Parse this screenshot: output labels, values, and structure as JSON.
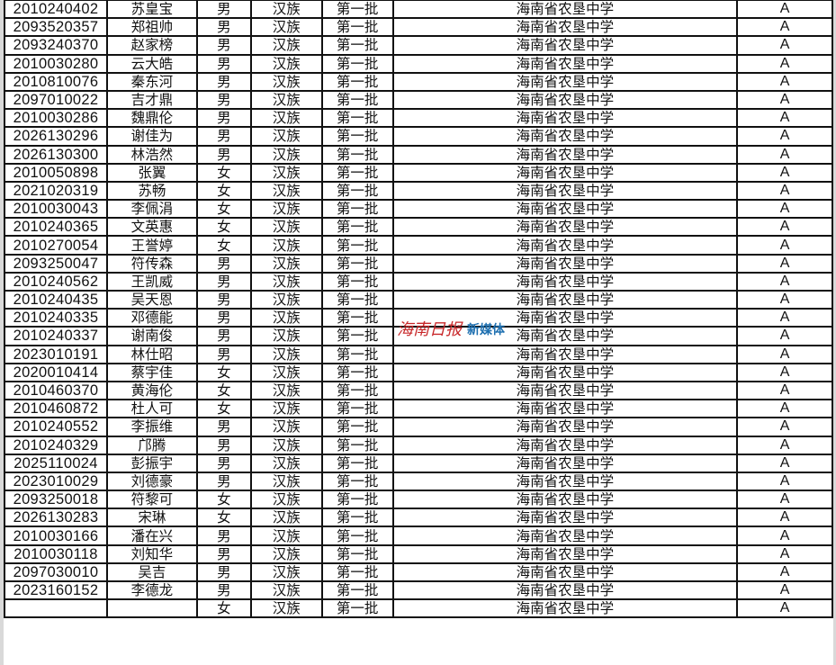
{
  "rows": [
    [
      "2010240402",
      "苏皇宝",
      "男",
      "汉族",
      "第一批",
      "海南省农垦中学",
      "A"
    ],
    [
      "2093520357",
      "郑祖帅",
      "男",
      "汉族",
      "第一批",
      "海南省农垦中学",
      "A"
    ],
    [
      "2093240370",
      "赵家榜",
      "男",
      "汉族",
      "第一批",
      "海南省农垦中学",
      "A"
    ],
    [
      "2010030280",
      "云大皓",
      "男",
      "汉族",
      "第一批",
      "海南省农垦中学",
      "A"
    ],
    [
      "2010810076",
      "秦东河",
      "男",
      "汉族",
      "第一批",
      "海南省农垦中学",
      "A"
    ],
    [
      "2097010022",
      "吉才鼎",
      "男",
      "汉族",
      "第一批",
      "海南省农垦中学",
      "A"
    ],
    [
      "2010030286",
      "魏鼎伦",
      "男",
      "汉族",
      "第一批",
      "海南省农垦中学",
      "A"
    ],
    [
      "2026130296",
      "谢佳为",
      "男",
      "汉族",
      "第一批",
      "海南省农垦中学",
      "A"
    ],
    [
      "2026130300",
      "林浩然",
      "男",
      "汉族",
      "第一批",
      "海南省农垦中学",
      "A"
    ],
    [
      "2010050898",
      "张翼",
      "女",
      "汉族",
      "第一批",
      "海南省农垦中学",
      "A"
    ],
    [
      "2021020319",
      "苏畅",
      "女",
      "汉族",
      "第一批",
      "海南省农垦中学",
      "A"
    ],
    [
      "2010030043",
      "李佩涓",
      "女",
      "汉族",
      "第一批",
      "海南省农垦中学",
      "A"
    ],
    [
      "2010240365",
      "文英惠",
      "女",
      "汉族",
      "第一批",
      "海南省农垦中学",
      "A"
    ],
    [
      "2010270054",
      "王誉婷",
      "女",
      "汉族",
      "第一批",
      "海南省农垦中学",
      "A"
    ],
    [
      "2093250047",
      "符传森",
      "男",
      "汉族",
      "第一批",
      "海南省农垦中学",
      "A"
    ],
    [
      "2010240562",
      "王凯威",
      "男",
      "汉族",
      "第一批",
      "海南省农垦中学",
      "A"
    ],
    [
      "2010240435",
      "吴天恩",
      "男",
      "汉族",
      "第一批",
      "海南省农垦中学",
      "A"
    ],
    [
      "2010240335",
      "邓德能",
      "男",
      "汉族",
      "第一批",
      "海南省农垦中学",
      "A"
    ],
    [
      "2010240337",
      "谢南俊",
      "男",
      "汉族",
      "第一批",
      "海南省农垦中学",
      "A"
    ],
    [
      "2023010191",
      "林仕昭",
      "男",
      "汉族",
      "第一批",
      "海南省农垦中学",
      "A"
    ],
    [
      "2020010414",
      "蔡宇佳",
      "女",
      "汉族",
      "第一批",
      "海南省农垦中学",
      "A"
    ],
    [
      "2010460370",
      "黄海伦",
      "女",
      "汉族",
      "第一批",
      "海南省农垦中学",
      "A"
    ],
    [
      "2010460872",
      "杜人可",
      "女",
      "汉族",
      "第一批",
      "海南省农垦中学",
      "A"
    ],
    [
      "2010240552",
      "李振维",
      "男",
      "汉族",
      "第一批",
      "海南省农垦中学",
      "A"
    ],
    [
      "2010240329",
      "邝腾",
      "男",
      "汉族",
      "第一批",
      "海南省农垦中学",
      "A"
    ],
    [
      "2025110024",
      "彭振宇",
      "男",
      "汉族",
      "第一批",
      "海南省农垦中学",
      "A"
    ],
    [
      "2023010029",
      "刘德豪",
      "男",
      "汉族",
      "第一批",
      "海南省农垦中学",
      "A"
    ],
    [
      "2093250018",
      "符黎可",
      "女",
      "汉族",
      "第一批",
      "海南省农垦中学",
      "A"
    ],
    [
      "2026130283",
      "宋琳",
      "女",
      "汉族",
      "第一批",
      "海南省农垦中学",
      "A"
    ],
    [
      "2010030166",
      "潘在兴",
      "男",
      "汉族",
      "第一批",
      "海南省农垦中学",
      "A"
    ],
    [
      "2010030118",
      "刘知华",
      "男",
      "汉族",
      "第一批",
      "海南省农垦中学",
      "A"
    ],
    [
      "2097030010",
      "吴吉",
      "男",
      "汉族",
      "第一批",
      "海南省农垦中学",
      "A"
    ],
    [
      "2023160152",
      "李德龙",
      "男",
      "汉族",
      "第一批",
      "海南省农垦中学",
      "A"
    ],
    [
      "",
      "",
      "女",
      "汉族",
      "第一批",
      "海南省农垦中学",
      "A"
    ]
  ],
  "watermark": {
    "logo": "海南日报",
    "sub": "新媒体",
    "logo_color": "#c8282a",
    "sub_color": "#1d6fb0"
  }
}
